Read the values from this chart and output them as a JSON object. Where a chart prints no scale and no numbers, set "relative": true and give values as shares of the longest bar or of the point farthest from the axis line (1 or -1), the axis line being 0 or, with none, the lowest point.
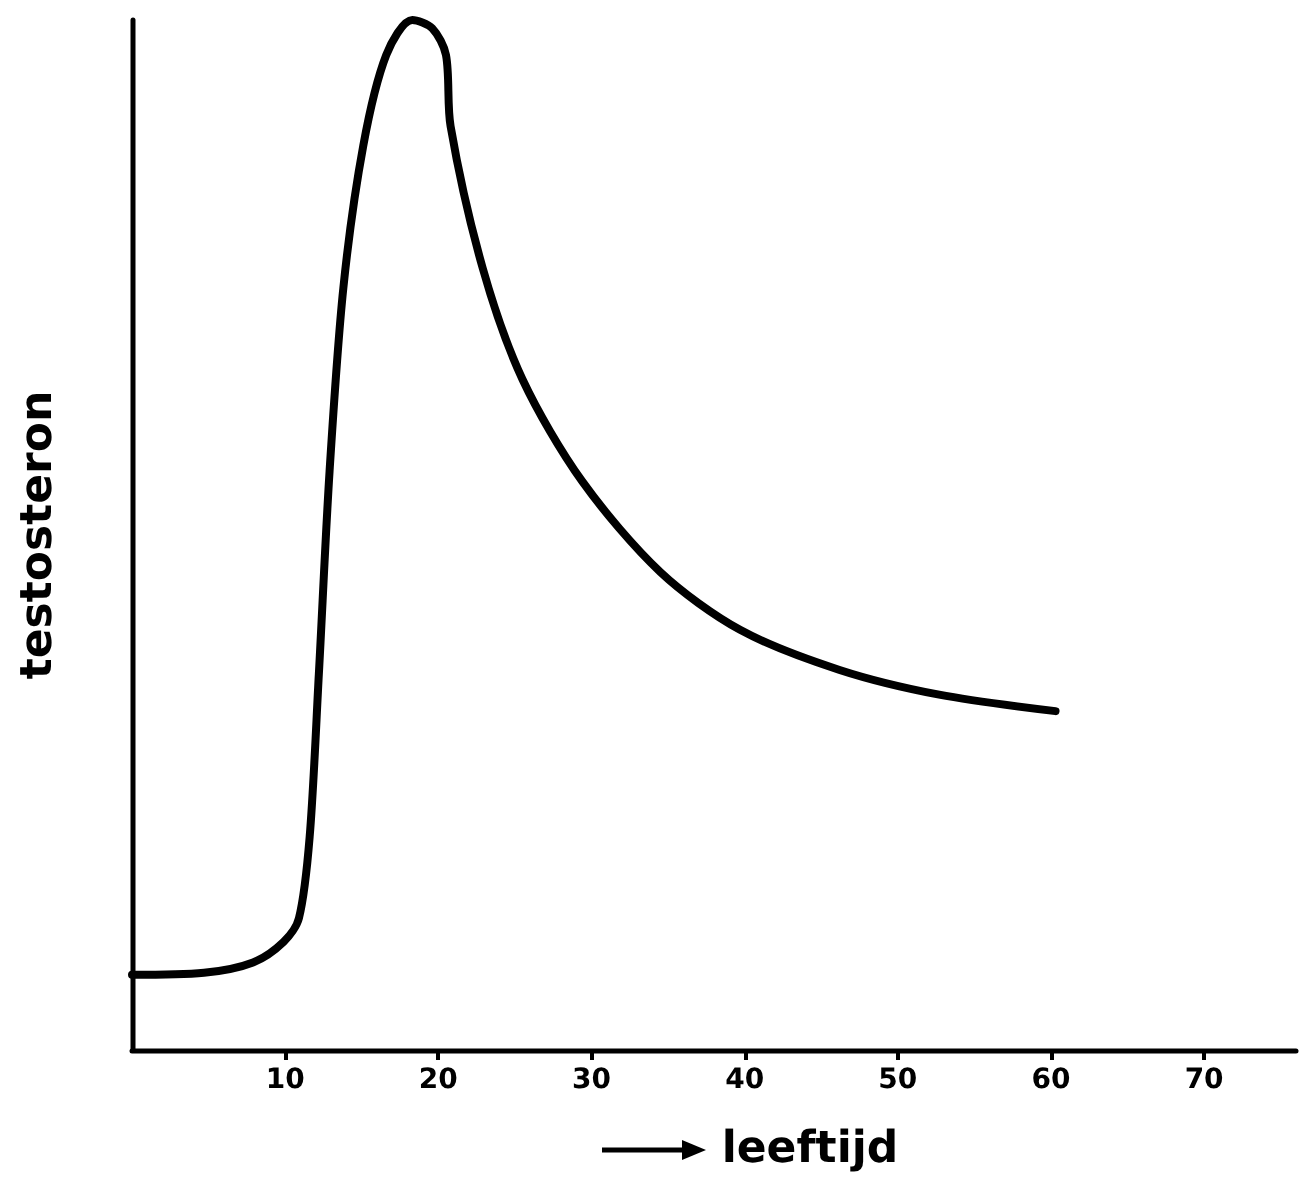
{
  "chart_data": {
    "type": "line",
    "xlabel": "leeftijd",
    "ylabel": "testosteron",
    "relative": true,
    "x": [
      0,
      4.7,
      7.9,
      9.9,
      10.9,
      11.6,
      12.2,
      12.9,
      13.8,
      15.1,
      16.6,
      18.3,
      19.6,
      20.5,
      20.8,
      22.9,
      25.5,
      29.4,
      34.5,
      39.7,
      46.2,
      52.7,
      60.3
    ],
    "series": [
      {
        "color": "#000000",
        "values": [
          0.073,
          0.075,
          0.085,
          0.105,
          0.128,
          0.207,
          0.365,
          0.562,
          0.74,
          0.878,
          0.966,
          1.0,
          0.992,
          0.966,
          0.897,
          0.759,
          0.651,
          0.552,
          0.464,
          0.408,
          0.369,
          0.345,
          0.329
        ]
      }
    ],
    "xlim": [
      0,
      76
    ],
    "xticks": [
      10,
      20,
      30,
      40,
      50,
      60,
      70
    ],
    "grid": false,
    "marker": "none",
    "line_style": "solid"
  }
}
